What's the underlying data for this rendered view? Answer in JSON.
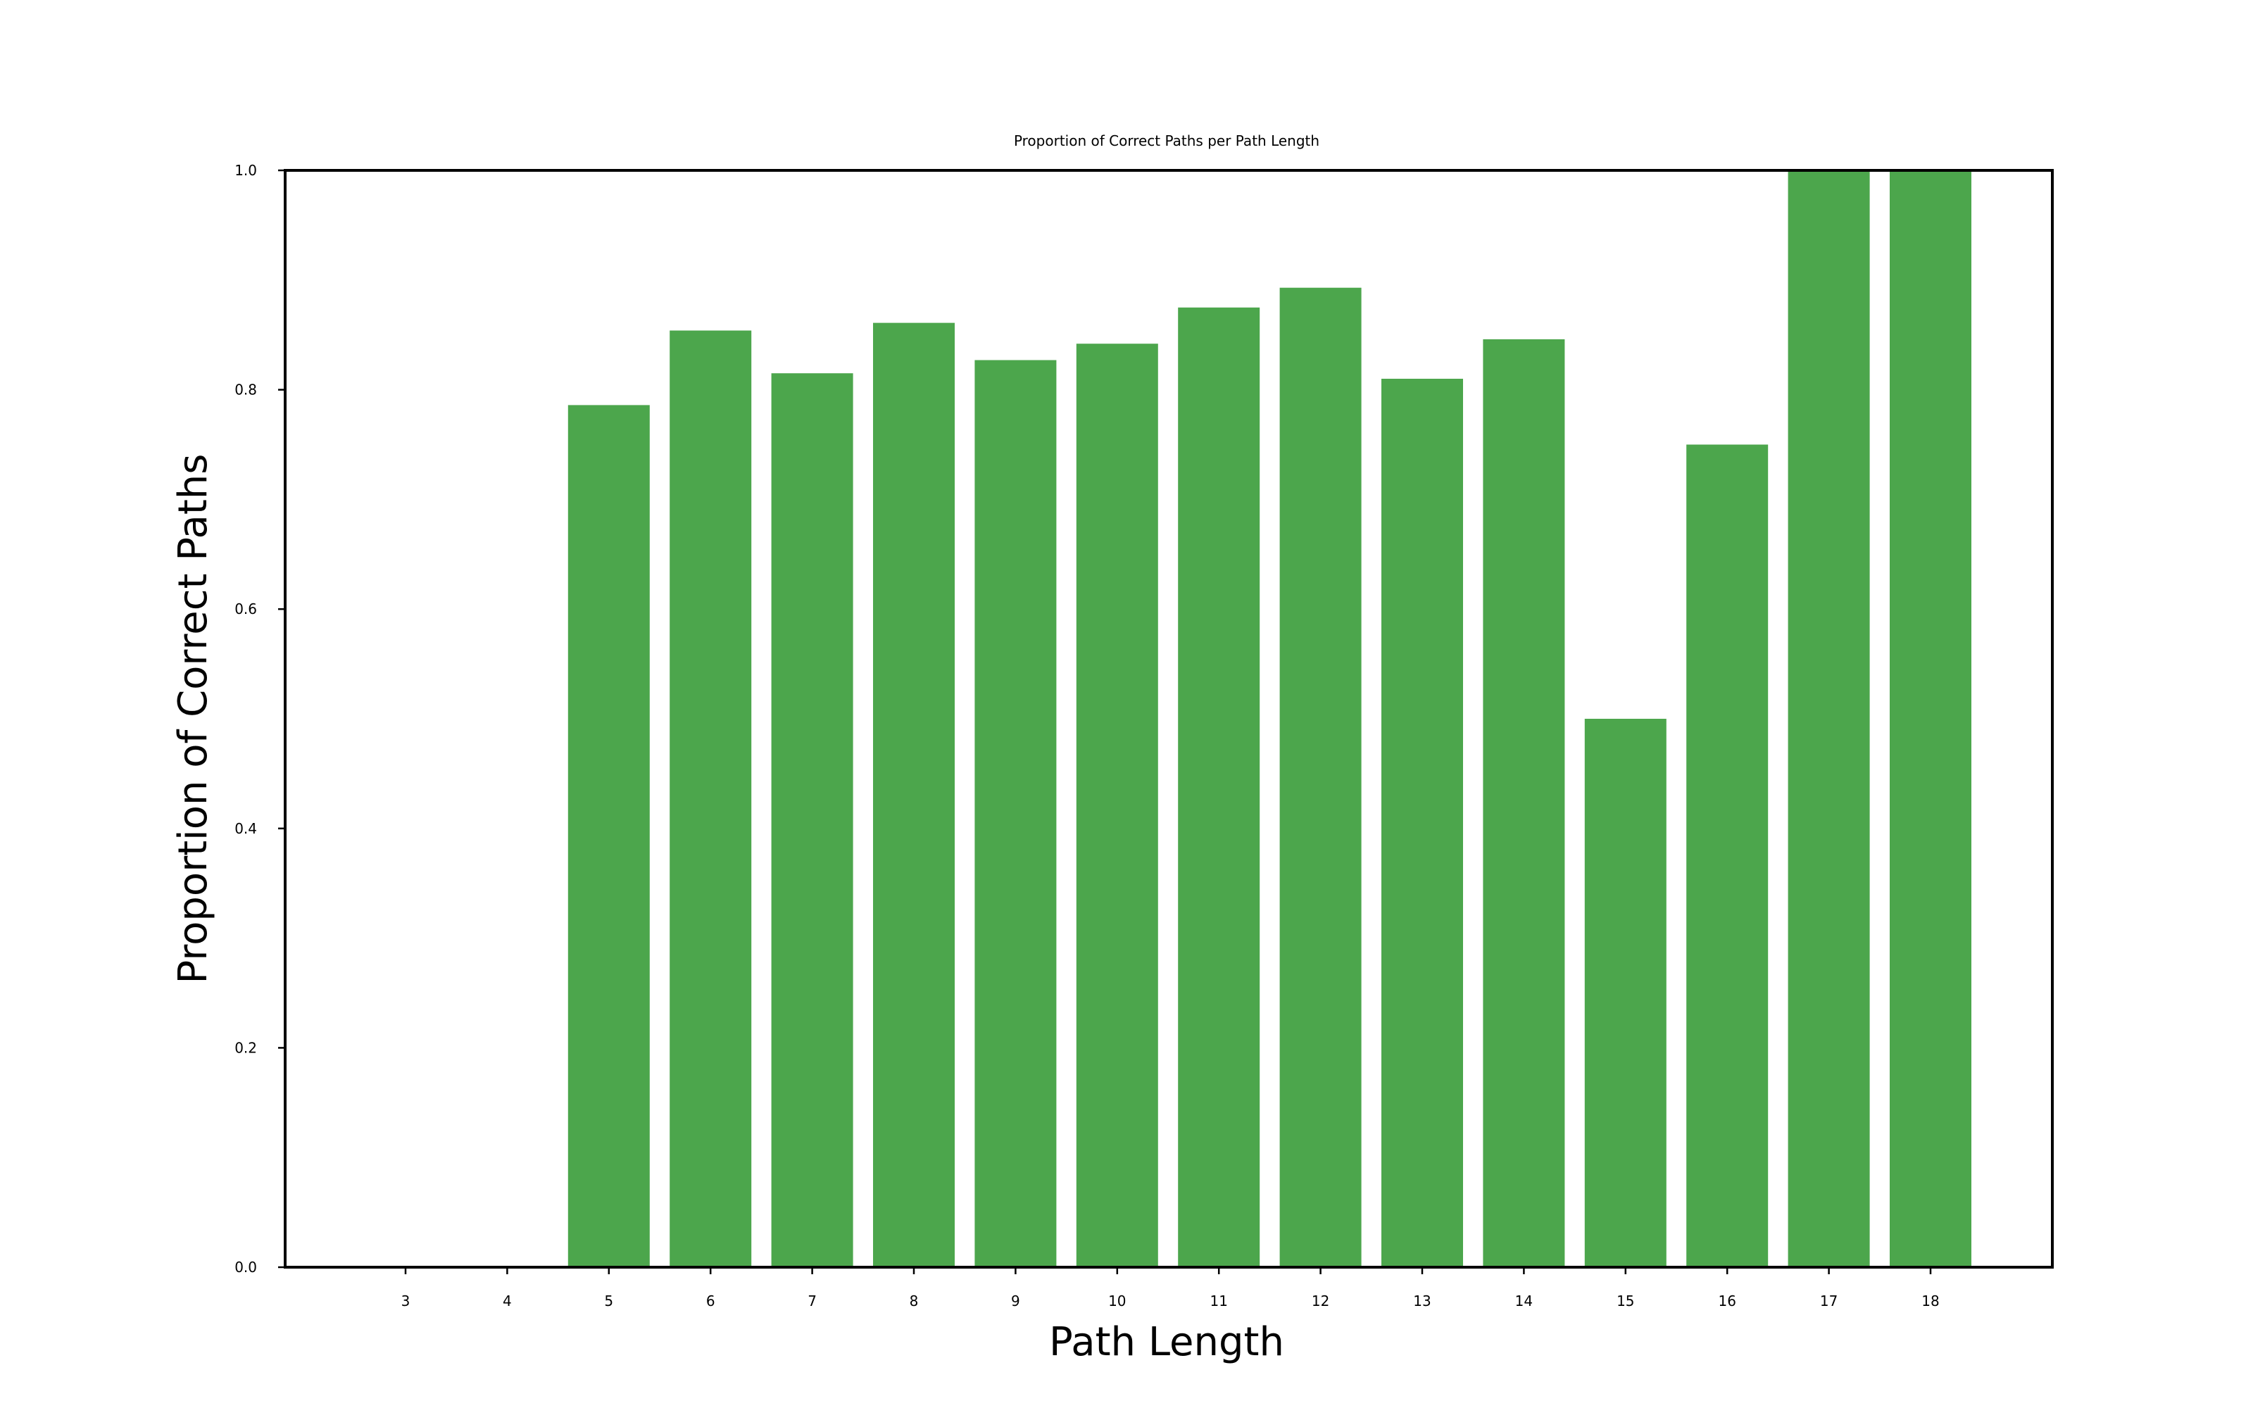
{
  "chart_data": {
    "type": "bar",
    "title": "Proportion of Correct Paths per Path Length",
    "xlabel": "Path Length",
    "ylabel": "Proportion of Correct Paths",
    "categories": [
      "3",
      "4",
      "5",
      "6",
      "7",
      "8",
      "9",
      "10",
      "11",
      "12",
      "13",
      "14",
      "15",
      "16",
      "17",
      "18"
    ],
    "values": [
      0,
      0,
      0.786,
      0.854,
      0.815,
      0.861,
      0.827,
      0.842,
      0.875,
      0.893,
      0.81,
      0.846,
      0.5,
      0.75,
      1.0,
      1.0
    ],
    "ylim": [
      0,
      1.0
    ],
    "yticks": [
      "0.0",
      "0.2",
      "0.4",
      "0.6",
      "0.8",
      "1.0"
    ],
    "bar_color": "#4ca64c",
    "grid": false,
    "legend": null
  }
}
